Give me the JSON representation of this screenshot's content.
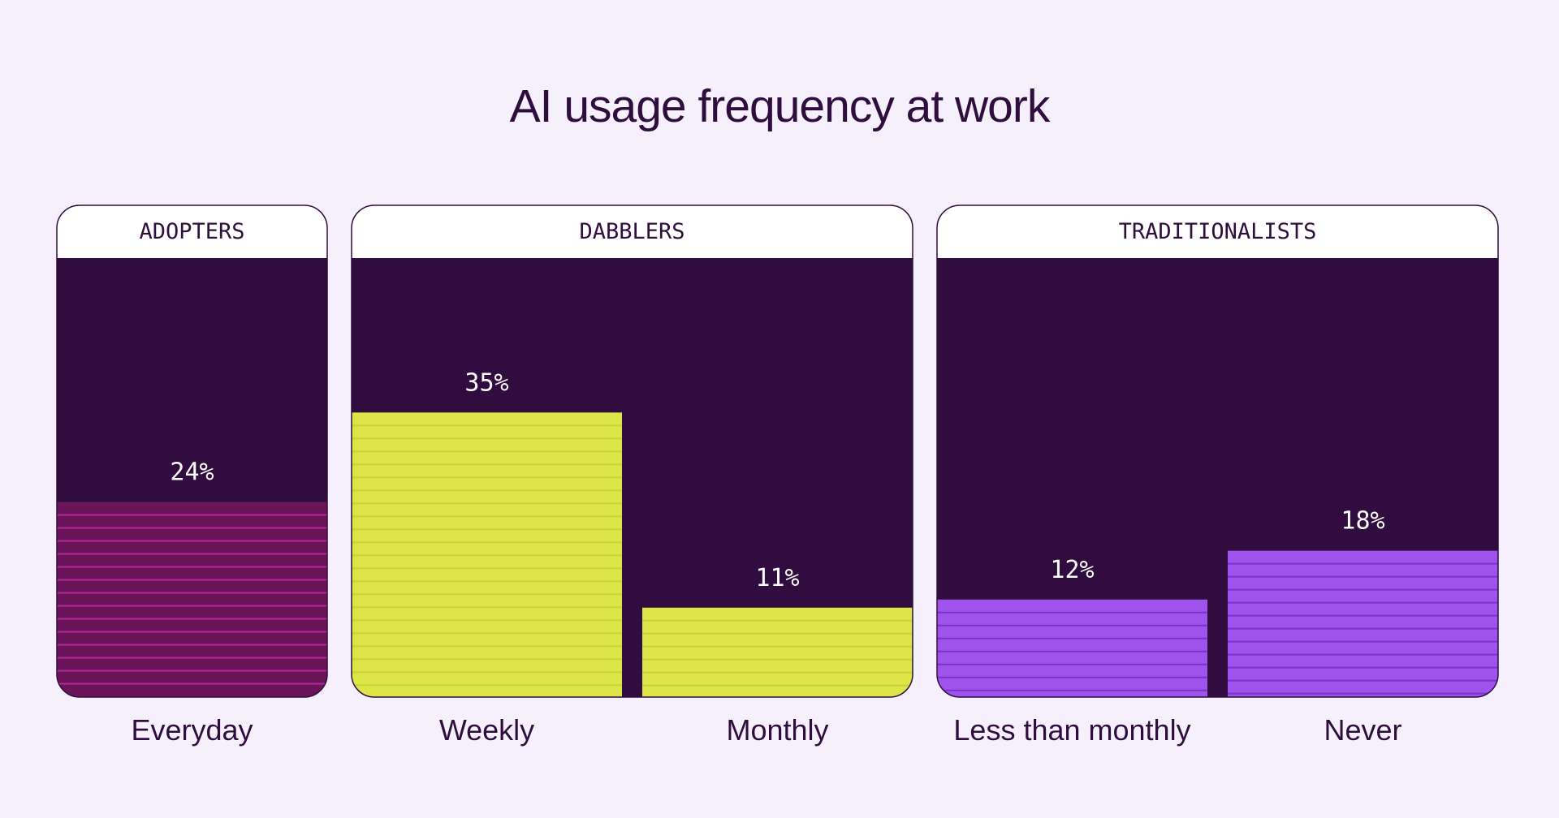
{
  "chart_data": {
    "type": "bar",
    "title": "AI usage frequency at work",
    "unit": "%",
    "ylim": [
      0,
      54
    ],
    "groups": [
      {
        "name": "ADOPTERS",
        "bars": [
          {
            "category": "Everyday",
            "value": 24,
            "label": "24%",
            "color": "#6a1558",
            "stripe": "#b0289a"
          }
        ]
      },
      {
        "name": "DABBLERS",
        "bars": [
          {
            "category": "Weekly",
            "value": 35,
            "label": "35%",
            "color": "#dde647",
            "stripe": "#c9d03d"
          },
          {
            "category": "Monthly",
            "value": 11,
            "label": "11%",
            "color": "#dde647",
            "stripe": "#c9d03d"
          }
        ]
      },
      {
        "name": "TRADITIONALISTS",
        "bars": [
          {
            "category": "Less than monthly",
            "value": 12,
            "label": "12%",
            "color": "#a053ec",
            "stripe": "#7a35c8"
          },
          {
            "category": "Never",
            "value": 18,
            "label": "18%",
            "color": "#a053ec",
            "stripe": "#7a35c8"
          }
        ]
      }
    ],
    "colors": {
      "background": "#f6effc",
      "panel": "#300c3f",
      "header": "#ffffff",
      "text": "#2f0e3e"
    }
  }
}
